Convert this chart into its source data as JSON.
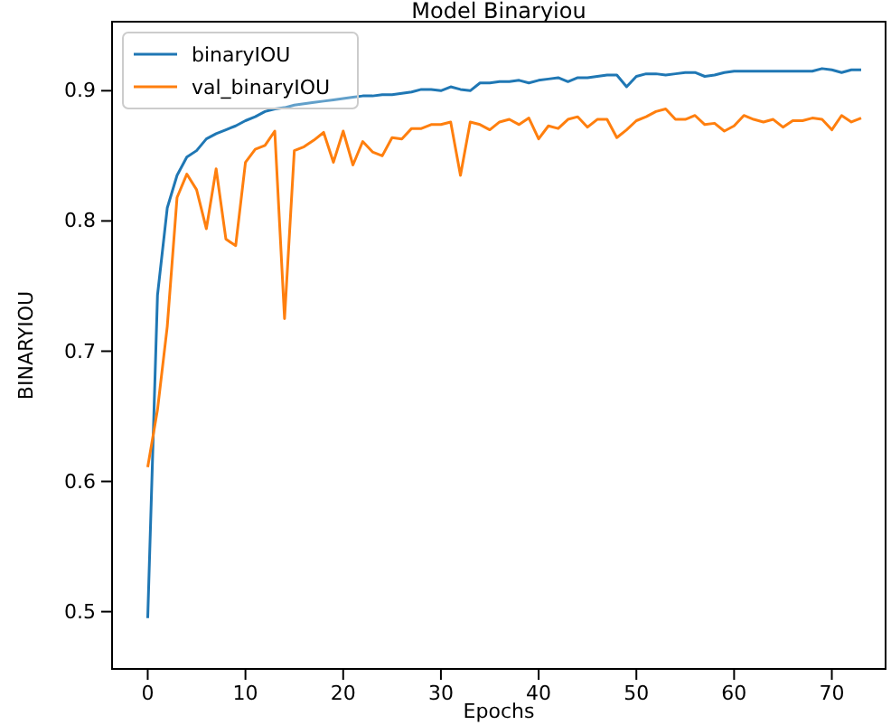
{
  "chart_data": {
    "type": "line",
    "title": "Model Binaryiou",
    "xlabel": "Epochs",
    "ylabel": "BINARYIOU",
    "x": [
      0,
      1,
      2,
      3,
      4,
      5,
      6,
      7,
      8,
      9,
      10,
      11,
      12,
      13,
      14,
      15,
      16,
      17,
      18,
      19,
      20,
      21,
      22,
      23,
      24,
      25,
      26,
      27,
      28,
      29,
      30,
      31,
      32,
      33,
      34,
      35,
      36,
      37,
      38,
      39,
      40,
      41,
      42,
      43,
      44,
      45,
      46,
      47,
      48,
      49,
      50,
      51,
      52,
      53,
      54,
      55,
      56,
      57,
      58,
      59,
      60,
      61,
      62,
      63,
      64,
      65,
      66,
      67,
      68,
      69,
      70,
      71,
      72,
      73
    ],
    "series": [
      {
        "name": "binaryIOU",
        "color": "#1f77b4",
        "values": [
          0.495,
          0.743,
          0.81,
          0.835,
          0.849,
          0.854,
          0.863,
          0.867,
          0.87,
          0.873,
          0.877,
          0.88,
          0.884,
          0.886,
          0.887,
          0.889,
          0.89,
          0.891,
          0.892,
          0.893,
          0.894,
          0.895,
          0.896,
          0.896,
          0.897,
          0.897,
          0.898,
          0.899,
          0.901,
          0.901,
          0.9,
          0.903,
          0.901,
          0.9,
          0.906,
          0.906,
          0.907,
          0.907,
          0.908,
          0.906,
          0.908,
          0.909,
          0.91,
          0.907,
          0.91,
          0.91,
          0.911,
          0.912,
          0.912,
          0.903,
          0.911,
          0.913,
          0.913,
          0.912,
          0.913,
          0.914,
          0.914,
          0.911,
          0.912,
          0.914,
          0.915,
          0.915,
          0.915,
          0.915,
          0.915,
          0.915,
          0.915,
          0.915,
          0.915,
          0.917,
          0.916,
          0.914,
          0.916,
          0.916
        ]
      },
      {
        "name": "val_binaryIOU",
        "color": "#ff7f0e",
        "values": [
          0.611,
          0.655,
          0.719,
          0.818,
          0.836,
          0.824,
          0.794,
          0.84,
          0.786,
          0.781,
          0.845,
          0.855,
          0.858,
          0.869,
          0.725,
          0.854,
          0.857,
          0.862,
          0.868,
          0.845,
          0.869,
          0.843,
          0.861,
          0.853,
          0.85,
          0.864,
          0.863,
          0.871,
          0.871,
          0.874,
          0.874,
          0.876,
          0.835,
          0.876,
          0.874,
          0.87,
          0.876,
          0.878,
          0.874,
          0.879,
          0.863,
          0.873,
          0.871,
          0.878,
          0.88,
          0.872,
          0.878,
          0.878,
          0.864,
          0.87,
          0.877,
          0.88,
          0.884,
          0.886,
          0.878,
          0.878,
          0.881,
          0.874,
          0.875,
          0.869,
          0.873,
          0.881,
          0.878,
          0.876,
          0.878,
          0.872,
          0.877,
          0.877,
          0.879,
          0.878,
          0.87,
          0.881,
          0.876,
          0.879
        ]
      }
    ],
    "xlim": [
      -3.65,
      75.5
    ],
    "ylim": [
      0.456,
      0.953
    ],
    "xticks": [
      0,
      10,
      20,
      30,
      40,
      50,
      60,
      70
    ],
    "yticks": [
      {
        "value": 0.5,
        "label": "0.5"
      },
      {
        "value": 0.6,
        "label": "0.6"
      },
      {
        "value": 0.7,
        "label": "0.7"
      },
      {
        "value": 0.8,
        "label": "0.8"
      },
      {
        "value": 0.9,
        "label": "0.9"
      }
    ],
    "legend": "top left",
    "grid": false,
    "marker": "none",
    "line_style": "solid"
  }
}
